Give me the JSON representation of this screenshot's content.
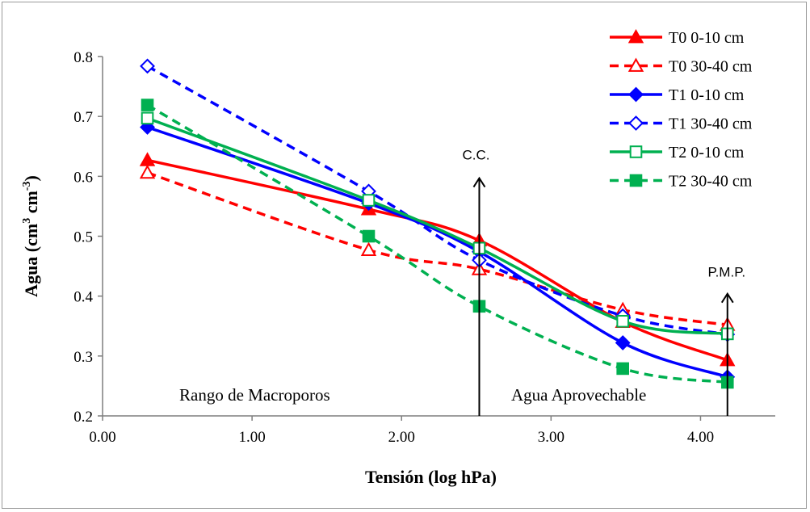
{
  "chart_data": {
    "type": "line",
    "xlabel": "Tensión (log hPa)",
    "ylabel_main": "Agua (cm",
    "ylabel_sup1": "3",
    "ylabel_mid": " cm",
    "ylabel_sup2": "-3",
    "ylabel_end": ")",
    "xlim": [
      0,
      4.5
    ],
    "ylim": [
      0.2,
      0.8
    ],
    "xticks": [
      0,
      1,
      2,
      3,
      4
    ],
    "xtick_labels": [
      "0.00",
      "1.00",
      "2.00",
      "3.00",
      "4.00"
    ],
    "yticks": [
      0.2,
      0.3,
      0.4,
      0.5,
      0.6,
      0.7,
      0.8
    ],
    "ytick_labels": [
      "0.2",
      "0.3",
      "0.4",
      "0.5",
      "0.6",
      "0.7",
      "0.8"
    ],
    "grid": false,
    "legend_position": "top-right",
    "x": [
      0.3,
      1.78,
      2.52,
      3.48,
      4.18
    ],
    "series": [
      {
        "name": "T0 0-10 cm",
        "values": [
          0.627,
          0.545,
          0.493,
          0.357,
          0.293
        ],
        "color": "#ff0000",
        "dash": "solid",
        "marker": "triangle",
        "filled": true
      },
      {
        "name": "T0 30-40 cm",
        "values": [
          0.606,
          0.477,
          0.445,
          0.377,
          0.352
        ],
        "color": "#ff0000",
        "dash": "dashed",
        "marker": "triangle",
        "filled": false
      },
      {
        "name": "T1 0-10 cm",
        "values": [
          0.682,
          0.555,
          0.474,
          0.322,
          0.265
        ],
        "color": "#0000ff",
        "dash": "solid",
        "marker": "diamond",
        "filled": true
      },
      {
        "name": "T1 30-40 cm",
        "values": [
          0.784,
          0.575,
          0.46,
          0.367,
          0.336
        ],
        "color": "#0000ff",
        "dash": "dashed",
        "marker": "diamond",
        "filled": false
      },
      {
        "name": "T2 0-10 cm",
        "values": [
          0.697,
          0.56,
          0.48,
          0.358,
          0.337
        ],
        "color": "#00b050",
        "dash": "solid",
        "marker": "square",
        "filled": false
      },
      {
        "name": "T2 30-40 cm",
        "values": [
          0.719,
          0.5,
          0.383,
          0.279,
          0.256
        ],
        "color": "#00b050",
        "dash": "dashed",
        "marker": "square",
        "filled": true
      }
    ],
    "annotations": {
      "cc_label": "C.C.",
      "cc_x": 2.52,
      "cc_arrow_from": 0.2,
      "cc_arrow_to": 0.597,
      "pmp_label": "P.M.P.",
      "pmp_x": 4.18,
      "pmp_arrow_from": 0.2,
      "pmp_arrow_to": 0.404,
      "macro_label": "Rango de Macroporos",
      "available_label": "Agua Aprovechable"
    }
  }
}
